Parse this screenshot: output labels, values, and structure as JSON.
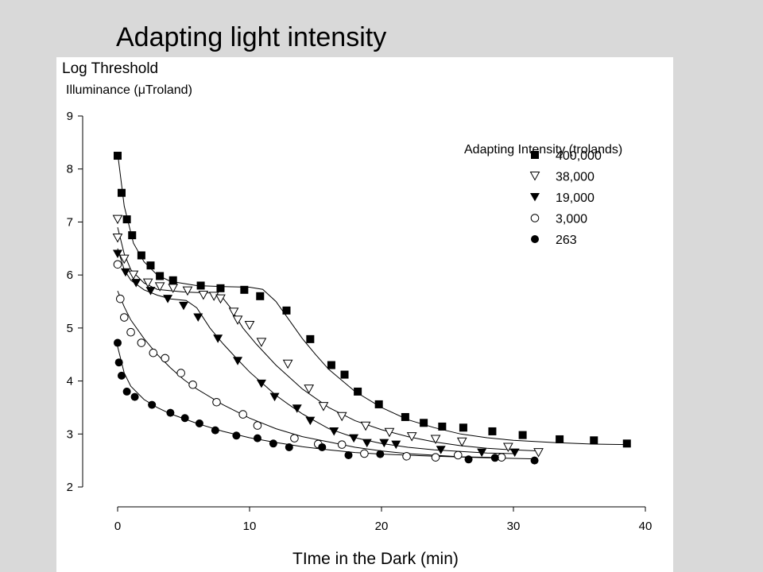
{
  "slide": {
    "title": "Adapting light intensity"
  },
  "chart_data": {
    "type": "scatter",
    "ylabel_line1": "Log Threshold",
    "ylabel_line2": "Illuminance (μTroland)",
    "xlabel": "TIme in the Dark (min)",
    "xlim": [
      0,
      40
    ],
    "ylim": [
      2,
      9
    ],
    "xticks": [
      0,
      10,
      20,
      30,
      40
    ],
    "yticks": [
      2,
      3,
      4,
      5,
      6,
      7,
      8,
      9
    ],
    "grid": false,
    "legend_title": "Adapting Intensity (trolands)",
    "legend_position": "top-right",
    "series": [
      {
        "name": "400,000",
        "marker": "filled-square",
        "points": [
          [
            0,
            8.25
          ],
          [
            0.3,
            7.55
          ],
          [
            0.7,
            7.05
          ],
          [
            1.1,
            6.75
          ],
          [
            1.8,
            6.37
          ],
          [
            2.5,
            6.18
          ],
          [
            3.2,
            5.98
          ],
          [
            4.2,
            5.9
          ],
          [
            6.3,
            5.8
          ],
          [
            7.8,
            5.75
          ],
          [
            9.6,
            5.72
          ],
          [
            10.8,
            5.6
          ],
          [
            12.8,
            5.33
          ],
          [
            14.6,
            4.79
          ],
          [
            16.2,
            4.3
          ],
          [
            17.2,
            4.12
          ],
          [
            18.2,
            3.8
          ],
          [
            19.8,
            3.56
          ],
          [
            21.8,
            3.32
          ],
          [
            23.2,
            3.21
          ],
          [
            24.6,
            3.14
          ],
          [
            26.2,
            3.12
          ],
          [
            28.4,
            3.05
          ],
          [
            30.7,
            2.98
          ],
          [
            33.5,
            2.9
          ],
          [
            36.1,
            2.88
          ],
          [
            38.6,
            2.82
          ]
        ],
        "curve": [
          [
            0,
            8.3
          ],
          [
            0.5,
            7.3
          ],
          [
            1.2,
            6.6
          ],
          [
            2,
            6.25
          ],
          [
            3,
            6.0
          ],
          [
            4,
            5.88
          ],
          [
            6,
            5.8
          ],
          [
            8,
            5.78
          ],
          [
            10,
            5.77
          ],
          [
            11,
            5.73
          ],
          [
            12,
            5.5
          ],
          [
            13,
            5.15
          ],
          [
            14,
            4.8
          ],
          [
            15,
            4.5
          ],
          [
            16,
            4.22
          ],
          [
            18,
            3.8
          ],
          [
            20,
            3.5
          ],
          [
            22,
            3.27
          ],
          [
            24,
            3.12
          ],
          [
            26,
            3.0
          ],
          [
            28,
            2.93
          ],
          [
            30,
            2.88
          ],
          [
            33,
            2.84
          ],
          [
            36,
            2.81
          ],
          [
            38.6,
            2.8
          ]
        ]
      },
      {
        "name": "38,000",
        "marker": "open-triangle-down",
        "points": [
          [
            0,
            7.05
          ],
          [
            0,
            6.7
          ],
          [
            0.5,
            6.3
          ],
          [
            1.2,
            6.0
          ],
          [
            2.3,
            5.85
          ],
          [
            3.2,
            5.78
          ],
          [
            4.2,
            5.75
          ],
          [
            5.3,
            5.7
          ],
          [
            6.5,
            5.62
          ],
          [
            7.3,
            5.6
          ],
          [
            7.8,
            5.55
          ],
          [
            8.8,
            5.3
          ],
          [
            9.1,
            5.15
          ],
          [
            10,
            5.05
          ],
          [
            10.9,
            4.73
          ],
          [
            12.9,
            4.32
          ],
          [
            14.5,
            3.85
          ],
          [
            15.6,
            3.52
          ],
          [
            17,
            3.33
          ],
          [
            18.8,
            3.15
          ],
          [
            20.6,
            3.03
          ],
          [
            22.3,
            2.95
          ],
          [
            24.1,
            2.9
          ],
          [
            26.1,
            2.85
          ],
          [
            29.6,
            2.75
          ],
          [
            31.9,
            2.65
          ]
        ],
        "curve": [
          [
            0,
            6.9
          ],
          [
            0.5,
            6.4
          ],
          [
            1,
            6.1
          ],
          [
            2,
            5.85
          ],
          [
            3,
            5.73
          ],
          [
            5,
            5.68
          ],
          [
            7,
            5.66
          ],
          [
            7.8,
            5.62
          ],
          [
            8.5,
            5.4
          ],
          [
            9.5,
            5.0
          ],
          [
            10.5,
            4.7
          ],
          [
            12,
            4.3
          ],
          [
            14,
            3.85
          ],
          [
            16,
            3.5
          ],
          [
            18,
            3.25
          ],
          [
            20,
            3.08
          ],
          [
            22,
            2.95
          ],
          [
            24,
            2.85
          ],
          [
            26,
            2.78
          ],
          [
            28,
            2.73
          ],
          [
            30,
            2.7
          ],
          [
            31.9,
            2.68
          ]
        ]
      },
      {
        "name": "19,000",
        "marker": "filled-triangle-down",
        "points": [
          [
            0,
            6.4
          ],
          [
            0.6,
            6.05
          ],
          [
            1.4,
            5.85
          ],
          [
            2.5,
            5.7
          ],
          [
            3.8,
            5.55
          ],
          [
            5,
            5.42
          ],
          [
            6.1,
            5.2
          ],
          [
            7.6,
            4.8
          ],
          [
            9.1,
            4.38
          ],
          [
            10.9,
            3.95
          ],
          [
            11.9,
            3.7
          ],
          [
            13.6,
            3.48
          ],
          [
            14.6,
            3.25
          ],
          [
            16.4,
            3.05
          ],
          [
            17.9,
            2.92
          ],
          [
            18.9,
            2.83
          ],
          [
            20.2,
            2.83
          ],
          [
            21.1,
            2.8
          ],
          [
            24.5,
            2.7
          ],
          [
            27.6,
            2.65
          ],
          [
            30.1,
            2.65
          ]
        ],
        "curve": [
          [
            0,
            6.5
          ],
          [
            0.5,
            6.1
          ],
          [
            1,
            5.9
          ],
          [
            2,
            5.72
          ],
          [
            3,
            5.62
          ],
          [
            4,
            5.55
          ],
          [
            5.2,
            5.52
          ],
          [
            6,
            5.38
          ],
          [
            7,
            5.0
          ],
          [
            8,
            4.7
          ],
          [
            9,
            4.43
          ],
          [
            10,
            4.17
          ],
          [
            11,
            3.95
          ],
          [
            12,
            3.73
          ],
          [
            13,
            3.55
          ],
          [
            14,
            3.38
          ],
          [
            15,
            3.24
          ],
          [
            16,
            3.1
          ],
          [
            18,
            2.93
          ],
          [
            20,
            2.82
          ],
          [
            22,
            2.75
          ],
          [
            24,
            2.7
          ],
          [
            26,
            2.67
          ],
          [
            28,
            2.64
          ],
          [
            30,
            2.63
          ]
        ]
      },
      {
        "name": "3,000",
        "marker": "open-circle",
        "points": [
          [
            0,
            6.2
          ],
          [
            0.2,
            5.55
          ],
          [
            0.5,
            5.2
          ],
          [
            1,
            4.92
          ],
          [
            1.8,
            4.72
          ],
          [
            2.7,
            4.53
          ],
          [
            3.6,
            4.43
          ],
          [
            4.8,
            4.15
          ],
          [
            5.7,
            3.93
          ],
          [
            7.5,
            3.6
          ],
          [
            9.5,
            3.37
          ],
          [
            10.6,
            3.16
          ],
          [
            13.4,
            2.92
          ],
          [
            15.2,
            2.81
          ],
          [
            17,
            2.8
          ],
          [
            18.7,
            2.63
          ],
          [
            21.9,
            2.58
          ],
          [
            24.1,
            2.56
          ],
          [
            25.8,
            2.6
          ],
          [
            29.1,
            2.56
          ]
        ],
        "curve": [
          [
            0,
            5.7
          ],
          [
            0.5,
            5.4
          ],
          [
            1,
            5.15
          ],
          [
            2,
            4.8
          ],
          [
            3,
            4.5
          ],
          [
            4,
            4.25
          ],
          [
            5,
            4.03
          ],
          [
            6,
            3.85
          ],
          [
            8,
            3.55
          ],
          [
            10,
            3.3
          ],
          [
            12,
            3.1
          ],
          [
            14,
            2.95
          ],
          [
            16,
            2.85
          ],
          [
            18,
            2.75
          ],
          [
            20,
            2.68
          ],
          [
            22,
            2.63
          ],
          [
            24,
            2.6
          ],
          [
            26,
            2.57
          ],
          [
            28,
            2.56
          ],
          [
            29.1,
            2.55
          ]
        ]
      },
      {
        "name": "263",
        "marker": "filled-circle",
        "points": [
          [
            0,
            4.72
          ],
          [
            0.1,
            4.35
          ],
          [
            0.3,
            4.1
          ],
          [
            0.7,
            3.8
          ],
          [
            1.3,
            3.7
          ],
          [
            2.6,
            3.55
          ],
          [
            4,
            3.4
          ],
          [
            5.1,
            3.3
          ],
          [
            6.2,
            3.2
          ],
          [
            7.4,
            3.07
          ],
          [
            9,
            2.97
          ],
          [
            10.6,
            2.92
          ],
          [
            11.8,
            2.82
          ],
          [
            13,
            2.75
          ],
          [
            15.5,
            2.75
          ],
          [
            17.5,
            2.6
          ],
          [
            19.9,
            2.62
          ],
          [
            26.6,
            2.52
          ],
          [
            28.6,
            2.55
          ],
          [
            31.6,
            2.5
          ]
        ],
        "curve": [
          [
            0,
            4.65
          ],
          [
            0.5,
            4.15
          ],
          [
            1,
            3.9
          ],
          [
            2,
            3.65
          ],
          [
            3,
            3.5
          ],
          [
            4,
            3.38
          ],
          [
            6,
            3.2
          ],
          [
            8,
            3.05
          ],
          [
            10,
            2.93
          ],
          [
            12,
            2.84
          ],
          [
            14,
            2.76
          ],
          [
            16,
            2.7
          ],
          [
            18,
            2.65
          ],
          [
            20,
            2.62
          ],
          [
            24,
            2.58
          ],
          [
            28,
            2.55
          ],
          [
            31.6,
            2.53
          ]
        ]
      }
    ]
  }
}
